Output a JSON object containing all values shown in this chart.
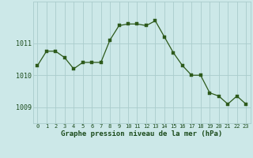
{
  "x": [
    0,
    1,
    2,
    3,
    4,
    5,
    6,
    7,
    8,
    9,
    10,
    11,
    12,
    13,
    14,
    15,
    16,
    17,
    18,
    19,
    20,
    21,
    22,
    23
  ],
  "y": [
    1010.3,
    1010.75,
    1010.75,
    1010.55,
    1010.2,
    1010.4,
    1010.4,
    1010.4,
    1011.1,
    1011.55,
    1011.6,
    1011.6,
    1011.55,
    1011.7,
    1011.2,
    1010.7,
    1010.3,
    1010.0,
    1010.0,
    1009.45,
    1009.35,
    1009.1,
    1009.35,
    1009.1
  ],
  "line_color": "#2d5a1b",
  "marker_color": "#2d5a1b",
  "bg_color": "#cce8e8",
  "grid_color": "#aacccc",
  "xlabel": "Graphe pression niveau de la mer (hPa)",
  "xlabel_color": "#1a4a1a",
  "ytick_labels": [
    "1009",
    "1010",
    "1011"
  ],
  "ytick_vals": [
    1009,
    1010,
    1011
  ],
  "ylim": [
    1008.5,
    1012.3
  ],
  "xlim": [
    -0.5,
    23.5
  ],
  "xtick_fontsize": 5.0,
  "ytick_fontsize": 6.0,
  "xlabel_fontsize": 6.5
}
